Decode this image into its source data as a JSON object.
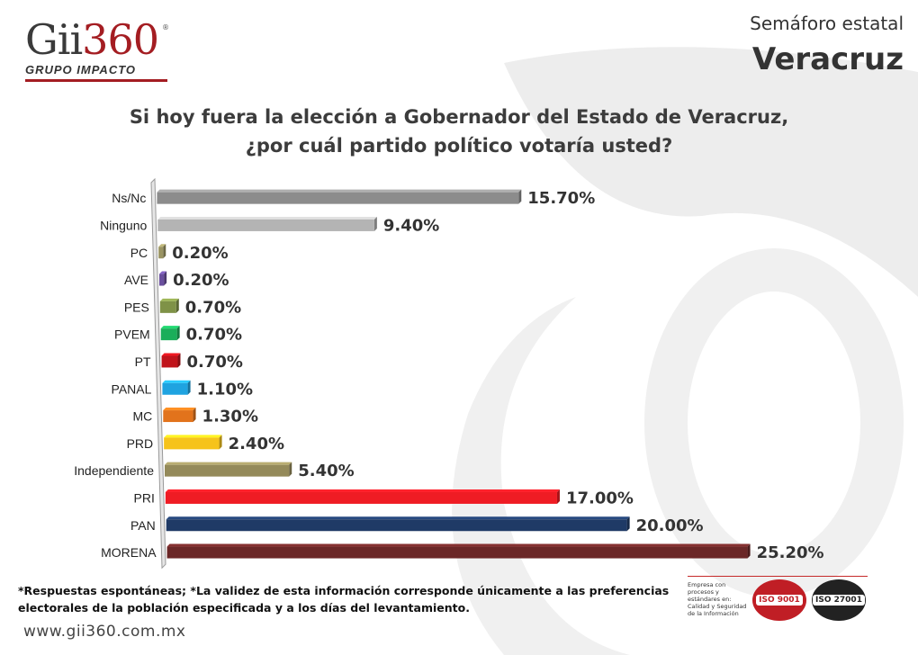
{
  "header": {
    "logo_text": "Gii360",
    "logo_subtitle": "GRUPO IMPACTO",
    "subtitle": "Semáforo estatal",
    "state": "Veracruz"
  },
  "title_line1": "Si hoy fuera la elección a Gobernador del Estado de Veracruz,",
  "title_line2": "¿por cuál partido político votaría usted?",
  "chart_data": {
    "type": "bar",
    "orientation": "horizontal",
    "title": "Si hoy fuera la elección a Gobernador del Estado de Veracruz, ¿por cuál partido político votaría usted?",
    "categories": [
      "Ns/Nc",
      "Ninguno",
      "PC",
      "AVE",
      "PES",
      "PVEM",
      "PT",
      "PANAL",
      "MC",
      "PRD",
      "Independiente",
      "PRI",
      "PAN",
      "MORENA"
    ],
    "values": [
      15.7,
      9.4,
      0.2,
      0.2,
      0.7,
      0.7,
      0.7,
      1.1,
      1.3,
      2.4,
      5.4,
      17.0,
      20.0,
      25.2
    ],
    "value_labels": [
      "15.70%",
      "9.40%",
      "0.20%",
      "0.20%",
      "0.70%",
      "0.70%",
      "0.70%",
      "1.10%",
      "1.30%",
      "2.40%",
      "5.40%",
      "17.00%",
      "20.00%",
      "25.20%"
    ],
    "colors": [
      "#8c8c8c",
      "#b4b4b4",
      "#9a9462",
      "#6a4f9e",
      "#7f9247",
      "#1aae5a",
      "#c0141b",
      "#1fa3e0",
      "#e2731c",
      "#f6c31b",
      "#948a5a",
      "#ef1c24",
      "#1f3a66",
      "#6b2727"
    ],
    "xlim": [
      0,
      25.2
    ],
    "grid": false,
    "legend": "none",
    "style": "3d"
  },
  "footnote_line1": "*Respuestas espontáneas; *La validez de esta información corresponde únicamente a las preferencias",
  "footnote_line2": "electorales de la población especificada y a los días del levantamiento.",
  "website": "www.gii360.com.mx",
  "certification": {
    "text": "Empresa con procesos y estándares en: Calidad y Seguridad de la Información",
    "badge1": "ISO 9001",
    "badge2": "ISO 27001"
  }
}
